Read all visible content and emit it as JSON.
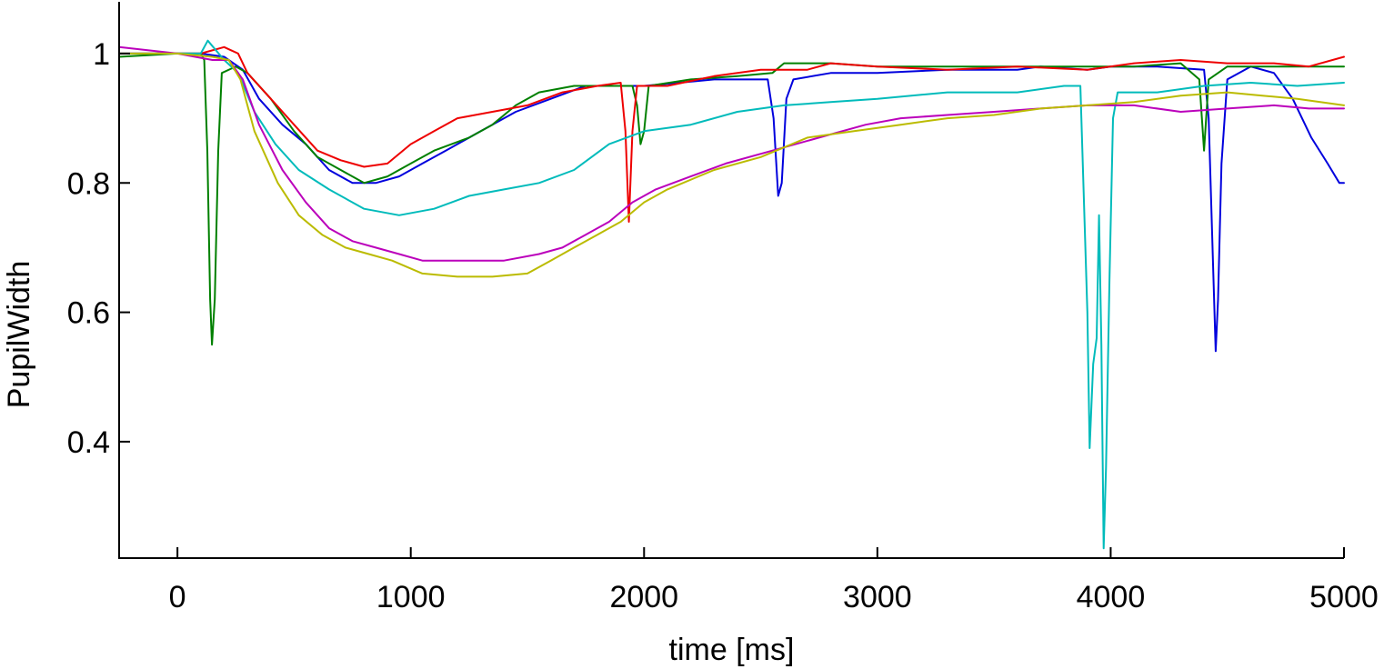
{
  "chart_data": {
    "type": "line",
    "title": "",
    "xlabel": "time [ms]",
    "ylabel": "PupilWidth",
    "xlim": [
      -250,
      5000
    ],
    "ylim": [
      0.22,
      1.08
    ],
    "xticks": [
      0,
      1000,
      2000,
      3000,
      4000,
      5000
    ],
    "xtick_labels": [
      "0",
      "1000",
      "2000",
      "3000",
      "4000",
      "5000"
    ],
    "yticks": [
      0.4,
      0.6,
      0.8,
      1
    ],
    "ytick_labels": [
      "0.4",
      "0.6",
      "0.8",
      "1"
    ],
    "grid": false,
    "legend": "none",
    "series": [
      {
        "color": "#0000dd",
        "points": [
          [
            -250,
            1.0
          ],
          [
            0,
            1.0
          ],
          [
            100,
            1.0
          ],
          [
            200,
            0.995
          ],
          [
            280,
            0.975
          ],
          [
            350,
            0.93
          ],
          [
            450,
            0.89
          ],
          [
            550,
            0.86
          ],
          [
            650,
            0.82
          ],
          [
            750,
            0.8
          ],
          [
            850,
            0.8
          ],
          [
            950,
            0.81
          ],
          [
            1050,
            0.83
          ],
          [
            1150,
            0.85
          ],
          [
            1300,
            0.88
          ],
          [
            1450,
            0.91
          ],
          [
            1600,
            0.93
          ],
          [
            1750,
            0.95
          ],
          [
            1900,
            0.95
          ],
          [
            2000,
            0.95
          ],
          [
            2150,
            0.955
          ],
          [
            2300,
            0.96
          ],
          [
            2450,
            0.96
          ],
          [
            2530,
            0.96
          ],
          [
            2555,
            0.9
          ],
          [
            2575,
            0.78
          ],
          [
            2590,
            0.8
          ],
          [
            2610,
            0.93
          ],
          [
            2640,
            0.96
          ],
          [
            2800,
            0.97
          ],
          [
            3000,
            0.97
          ],
          [
            3300,
            0.975
          ],
          [
            3600,
            0.975
          ],
          [
            3700,
            0.98
          ],
          [
            3900,
            0.975
          ],
          [
            4000,
            0.98
          ],
          [
            4200,
            0.98
          ],
          [
            4400,
            0.975
          ],
          [
            4420,
            0.9
          ],
          [
            4440,
            0.66
          ],
          [
            4450,
            0.54
          ],
          [
            4460,
            0.62
          ],
          [
            4475,
            0.83
          ],
          [
            4500,
            0.96
          ],
          [
            4600,
            0.98
          ],
          [
            4700,
            0.97
          ],
          [
            4780,
            0.93
          ],
          [
            4860,
            0.87
          ],
          [
            4930,
            0.83
          ],
          [
            4980,
            0.8
          ],
          [
            5000,
            0.8
          ]
        ]
      },
      {
        "color": "#008000",
        "points": [
          [
            -250,
            0.995
          ],
          [
            0,
            1.0
          ],
          [
            100,
            1.0
          ],
          [
            115,
            0.99
          ],
          [
            128,
            0.85
          ],
          [
            140,
            0.62
          ],
          [
            148,
            0.55
          ],
          [
            160,
            0.62
          ],
          [
            175,
            0.85
          ],
          [
            190,
            0.97
          ],
          [
            250,
            0.98
          ],
          [
            300,
            0.97
          ],
          [
            400,
            0.93
          ],
          [
            500,
            0.88
          ],
          [
            600,
            0.84
          ],
          [
            700,
            0.82
          ],
          [
            800,
            0.8
          ],
          [
            900,
            0.81
          ],
          [
            1000,
            0.83
          ],
          [
            1100,
            0.85
          ],
          [
            1250,
            0.87
          ],
          [
            1350,
            0.89
          ],
          [
            1450,
            0.92
          ],
          [
            1550,
            0.94
          ],
          [
            1700,
            0.95
          ],
          [
            1850,
            0.95
          ],
          [
            1950,
            0.95
          ],
          [
            1970,
            0.92
          ],
          [
            1985,
            0.86
          ],
          [
            2000,
            0.88
          ],
          [
            2020,
            0.95
          ],
          [
            2200,
            0.96
          ],
          [
            2400,
            0.965
          ],
          [
            2550,
            0.97
          ],
          [
            2600,
            0.985
          ],
          [
            2800,
            0.985
          ],
          [
            3000,
            0.98
          ],
          [
            3300,
            0.98
          ],
          [
            3600,
            0.98
          ],
          [
            3900,
            0.98
          ],
          [
            4100,
            0.98
          ],
          [
            4300,
            0.985
          ],
          [
            4380,
            0.96
          ],
          [
            4400,
            0.85
          ],
          [
            4420,
            0.96
          ],
          [
            4500,
            0.98
          ],
          [
            4700,
            0.98
          ],
          [
            4850,
            0.98
          ],
          [
            5000,
            0.98
          ]
        ]
      },
      {
        "color": "#ee0000",
        "points": [
          [
            -250,
            1.0
          ],
          [
            0,
            1.0
          ],
          [
            100,
            1.0
          ],
          [
            200,
            1.01
          ],
          [
            260,
            1.0
          ],
          [
            300,
            0.97
          ],
          [
            400,
            0.93
          ],
          [
            500,
            0.89
          ],
          [
            600,
            0.85
          ],
          [
            700,
            0.835
          ],
          [
            800,
            0.825
          ],
          [
            900,
            0.83
          ],
          [
            1000,
            0.86
          ],
          [
            1100,
            0.88
          ],
          [
            1200,
            0.9
          ],
          [
            1350,
            0.91
          ],
          [
            1500,
            0.92
          ],
          [
            1650,
            0.94
          ],
          [
            1800,
            0.95
          ],
          [
            1900,
            0.955
          ],
          [
            1920,
            0.88
          ],
          [
            1935,
            0.74
          ],
          [
            1950,
            0.88
          ],
          [
            1970,
            0.95
          ],
          [
            2100,
            0.95
          ],
          [
            2300,
            0.965
          ],
          [
            2500,
            0.975
          ],
          [
            2700,
            0.975
          ],
          [
            2800,
            0.985
          ],
          [
            3000,
            0.98
          ],
          [
            3300,
            0.975
          ],
          [
            3600,
            0.98
          ],
          [
            3900,
            0.975
          ],
          [
            4100,
            0.985
          ],
          [
            4300,
            0.99
          ],
          [
            4500,
            0.985
          ],
          [
            4700,
            0.985
          ],
          [
            4850,
            0.98
          ],
          [
            5000,
            0.995
          ]
        ]
      },
      {
        "color": "#00bbbb",
        "points": [
          [
            -250,
            1.0
          ],
          [
            0,
            1.0
          ],
          [
            100,
            1.0
          ],
          [
            130,
            1.02
          ],
          [
            200,
            0.99
          ],
          [
            260,
            0.97
          ],
          [
            330,
            0.91
          ],
          [
            420,
            0.86
          ],
          [
            520,
            0.82
          ],
          [
            650,
            0.79
          ],
          [
            800,
            0.76
          ],
          [
            950,
            0.75
          ],
          [
            1100,
            0.76
          ],
          [
            1250,
            0.78
          ],
          [
            1400,
            0.79
          ],
          [
            1550,
            0.8
          ],
          [
            1700,
            0.82
          ],
          [
            1850,
            0.86
          ],
          [
            2000,
            0.88
          ],
          [
            2200,
            0.89
          ],
          [
            2400,
            0.91
          ],
          [
            2600,
            0.92
          ],
          [
            2800,
            0.925
          ],
          [
            3000,
            0.93
          ],
          [
            3300,
            0.94
          ],
          [
            3600,
            0.94
          ],
          [
            3800,
            0.95
          ],
          [
            3870,
            0.95
          ],
          [
            3900,
            0.6
          ],
          [
            3910,
            0.39
          ],
          [
            3925,
            0.52
          ],
          [
            3940,
            0.56
          ],
          [
            3950,
            0.75
          ],
          [
            3960,
            0.55
          ],
          [
            3970,
            0.235
          ],
          [
            3980,
            0.36
          ],
          [
            3995,
            0.65
          ],
          [
            4010,
            0.9
          ],
          [
            4030,
            0.94
          ],
          [
            4200,
            0.94
          ],
          [
            4400,
            0.95
          ],
          [
            4600,
            0.955
          ],
          [
            4800,
            0.95
          ],
          [
            5000,
            0.955
          ]
        ]
      },
      {
        "color": "#bb00bb",
        "points": [
          [
            -250,
            1.01
          ],
          [
            0,
            1.0
          ],
          [
            150,
            0.99
          ],
          [
            220,
            0.99
          ],
          [
            280,
            0.96
          ],
          [
            350,
            0.89
          ],
          [
            450,
            0.82
          ],
          [
            550,
            0.77
          ],
          [
            650,
            0.73
          ],
          [
            750,
            0.71
          ],
          [
            850,
            0.7
          ],
          [
            950,
            0.69
          ],
          [
            1050,
            0.68
          ],
          [
            1200,
            0.68
          ],
          [
            1400,
            0.68
          ],
          [
            1550,
            0.69
          ],
          [
            1650,
            0.7
          ],
          [
            1750,
            0.72
          ],
          [
            1850,
            0.74
          ],
          [
            1950,
            0.77
          ],
          [
            2050,
            0.79
          ],
          [
            2200,
            0.81
          ],
          [
            2350,
            0.83
          ],
          [
            2550,
            0.85
          ],
          [
            2750,
            0.87
          ],
          [
            2950,
            0.89
          ],
          [
            3100,
            0.9
          ],
          [
            3300,
            0.905
          ],
          [
            3500,
            0.91
          ],
          [
            3700,
            0.915
          ],
          [
            3900,
            0.92
          ],
          [
            4100,
            0.92
          ],
          [
            4300,
            0.91
          ],
          [
            4500,
            0.915
          ],
          [
            4700,
            0.92
          ],
          [
            4850,
            0.915
          ],
          [
            5000,
            0.915
          ]
        ]
      },
      {
        "color": "#bbbb00",
        "points": [
          [
            -250,
            1.0
          ],
          [
            0,
            1.0
          ],
          [
            150,
            0.995
          ],
          [
            220,
            0.99
          ],
          [
            270,
            0.96
          ],
          [
            330,
            0.88
          ],
          [
            430,
            0.8
          ],
          [
            520,
            0.75
          ],
          [
            620,
            0.72
          ],
          [
            720,
            0.7
          ],
          [
            820,
            0.69
          ],
          [
            920,
            0.68
          ],
          [
            1050,
            0.66
          ],
          [
            1200,
            0.655
          ],
          [
            1350,
            0.655
          ],
          [
            1500,
            0.66
          ],
          [
            1600,
            0.68
          ],
          [
            1700,
            0.7
          ],
          [
            1800,
            0.72
          ],
          [
            1900,
            0.74
          ],
          [
            2000,
            0.77
          ],
          [
            2100,
            0.79
          ],
          [
            2300,
            0.82
          ],
          [
            2500,
            0.84
          ],
          [
            2700,
            0.87
          ],
          [
            2900,
            0.88
          ],
          [
            3100,
            0.89
          ],
          [
            3300,
            0.9
          ],
          [
            3500,
            0.905
          ],
          [
            3700,
            0.915
          ],
          [
            3900,
            0.92
          ],
          [
            4100,
            0.925
          ],
          [
            4300,
            0.935
          ],
          [
            4500,
            0.94
          ],
          [
            4650,
            0.935
          ],
          [
            4800,
            0.93
          ],
          [
            5000,
            0.92
          ]
        ]
      }
    ]
  }
}
